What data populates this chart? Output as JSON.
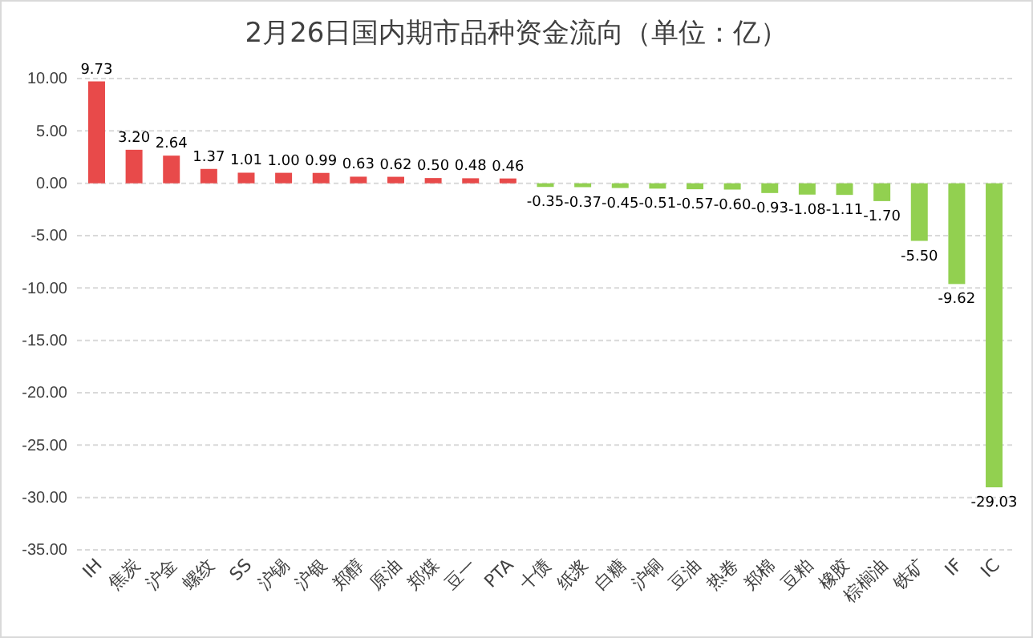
{
  "chart_data": {
    "type": "bar",
    "title": "2月26日国内期市品种资金流向（单位：亿）",
    "categories": [
      "IH",
      "焦炭",
      "沪金",
      "螺纹",
      "SS",
      "沪锡",
      "沪银",
      "郑醇",
      "原油",
      "郑煤",
      "豆一",
      "PTA",
      "十债",
      "纸浆",
      "白糖",
      "沪铜",
      "豆油",
      "热卷",
      "郑棉",
      "豆粕",
      "橡胶",
      "棕榈油",
      "铁矿",
      "IF",
      "IC"
    ],
    "values": [
      9.73,
      3.2,
      2.64,
      1.37,
      1.01,
      1.0,
      0.99,
      0.63,
      0.62,
      0.5,
      0.48,
      0.46,
      -0.35,
      -0.37,
      -0.45,
      -0.51,
      -0.57,
      -0.6,
      -0.93,
      -1.08,
      -1.11,
      -1.7,
      -5.5,
      -9.62,
      -29.03
    ],
    "value_labels": [
      "9.73",
      "3.20",
      "2.64",
      "1.37",
      "1.01",
      "1.00",
      "0.99",
      "0.63",
      "0.62",
      "0.50",
      "0.48",
      "0.46",
      "-0.35",
      "-0.37",
      "-0.45",
      "-0.51",
      "-0.57",
      "-0.60",
      "-0.93",
      "-1.08",
      "-1.11",
      "-1.70",
      "-5.50",
      "-9.62",
      "-29.03"
    ],
    "colors": [
      "#e84a4a",
      "#e84a4a",
      "#e84a4a",
      "#e84a4a",
      "#e84a4a",
      "#e84a4a",
      "#e84a4a",
      "#e84a4a",
      "#e84a4a",
      "#e84a4a",
      "#e84a4a",
      "#e84a4a",
      "#92d050",
      "#92d050",
      "#92d050",
      "#92d050",
      "#92d050",
      "#92d050",
      "#92d050",
      "#92d050",
      "#92d050",
      "#92d050",
      "#92d050",
      "#92d050",
      "#92d050"
    ],
    "ylim": [
      -35,
      10
    ],
    "yticks": [
      {
        "value": 10,
        "label": "10.00"
      },
      {
        "value": 5,
        "label": "5.00"
      },
      {
        "value": 0,
        "label": "0.00"
      },
      {
        "value": -5,
        "label": "-5.00"
      },
      {
        "value": -10,
        "label": "-10.00"
      },
      {
        "value": -15,
        "label": "-15.00"
      },
      {
        "value": -20,
        "label": "-20.00"
      },
      {
        "value": -25,
        "label": "-25.00"
      },
      {
        "value": -30,
        "label": "-30.00"
      },
      {
        "value": -35,
        "label": "-35.00"
      }
    ],
    "grid": "y"
  }
}
